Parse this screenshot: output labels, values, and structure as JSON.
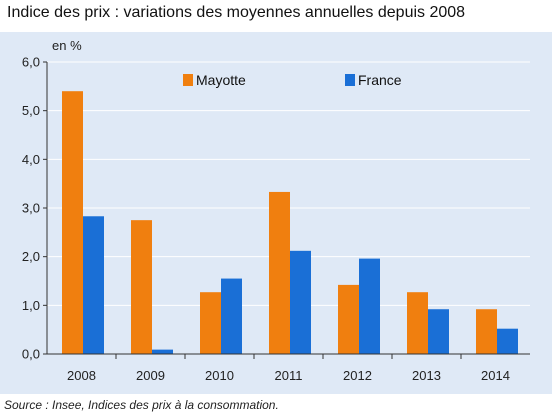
{
  "title": "Indice des prix : variations des moyennes annuelles depuis 2008",
  "source": "Source : Insee, Indices des prix à la consommation.",
  "colors": {
    "panel": "#dfe9f6",
    "grid": "#ffffff",
    "axis": "#333333"
  },
  "chart_data": {
    "type": "bar",
    "categories": [
      "2008",
      "2009",
      "2010",
      "2011",
      "2012",
      "2013",
      "2014"
    ],
    "series": [
      {
        "name": "Mayotte",
        "color": "#f07f0f",
        "values": [
          5.4,
          2.75,
          1.27,
          3.33,
          1.42,
          1.27,
          0.92
        ]
      },
      {
        "name": "France",
        "color": "#1a6fd6",
        "values": [
          2.83,
          0.09,
          1.55,
          2.12,
          1.96,
          0.92,
          0.52
        ]
      }
    ],
    "y_unit": "en %",
    "ylim": [
      0,
      6
    ],
    "yticks": [
      "0,0",
      "1,0",
      "2,0",
      "3,0",
      "4,0",
      "5,0",
      "6,0"
    ],
    "grid": true,
    "legend_position": "top"
  }
}
